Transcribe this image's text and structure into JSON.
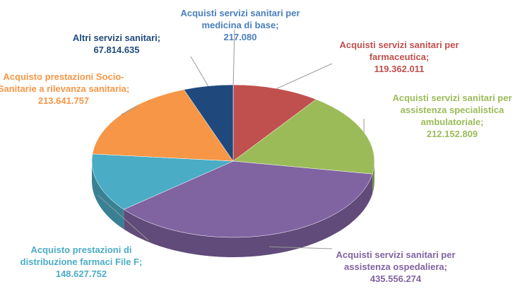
{
  "chart_data": {
    "type": "pie",
    "categories": [
      "Acquisti servizi sanitari per medicina di base;",
      "Acquisti servizi sanitari per farmaceutica;",
      "Acquisti servizi sanitari per assistenza specialistica ambulatoriale;",
      "Acquisti servizi sanitari per assistenza ospedaliera;",
      "Acquisto prestazioni di distribuzione farmaci File F;",
      "Acquisto prestazioni Socio-Sanitarie a rilevanza sanitaria;",
      "Altri servizi sanitari;"
    ],
    "values": [
      217080,
      119362011,
      212152809,
      435556274,
      148627752,
      213641757,
      67814635
    ],
    "value_labels": [
      "217.080",
      "119.362.011",
      "212.152.809",
      "435.556.274",
      "148.627.752",
      "213.641.757",
      "67.814.635"
    ],
    "colors": [
      "#4a7ebb",
      "#c0504d",
      "#9bbb59",
      "#8064a2",
      "#4bacc6",
      "#f79646",
      "#1f497d"
    ]
  }
}
